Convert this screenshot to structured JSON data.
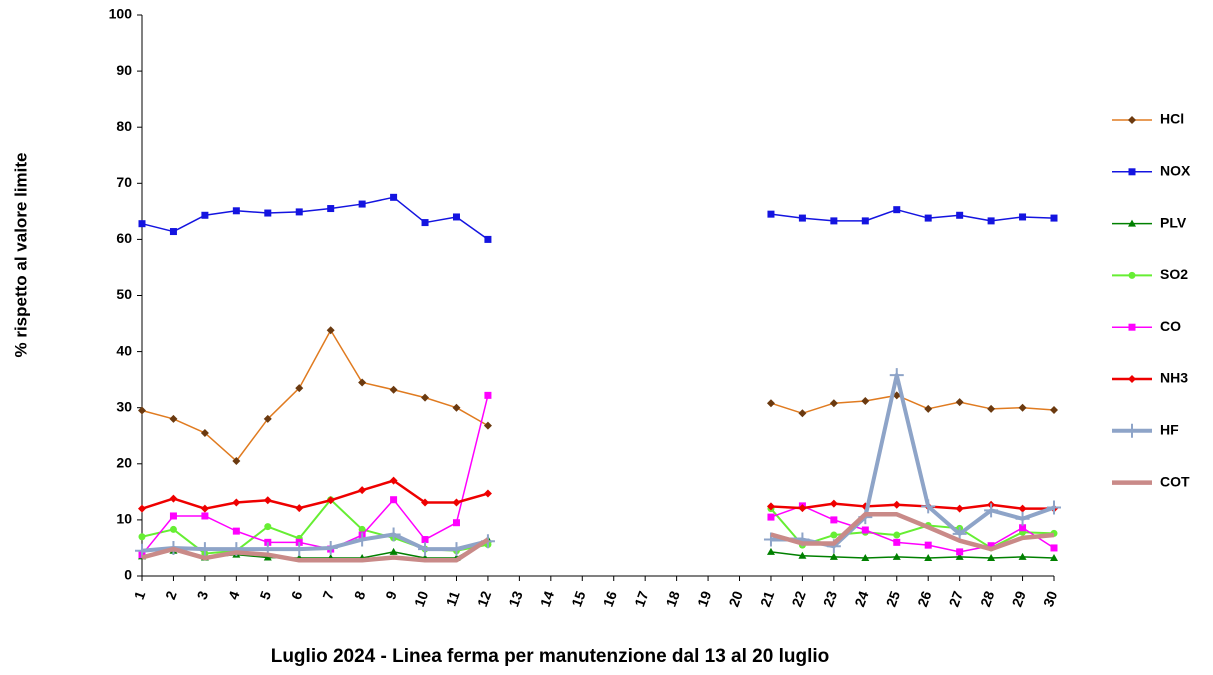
{
  "chart_data": {
    "type": "line",
    "y_label": "% rispetto al valore limite",
    "x_label": "Luglio 2024 - Linea ferma per manutenzione dal 13 al 20 luglio",
    "categories": [
      "1",
      "2",
      "3",
      "4",
      "5",
      "6",
      "7",
      "8",
      "9",
      "10",
      "11",
      "12",
      "13",
      "14",
      "15",
      "16",
      "17",
      "18",
      "19",
      "20",
      "21",
      "22",
      "23",
      "24",
      "25",
      "26",
      "27",
      "28",
      "29",
      "30"
    ],
    "ylim": [
      0,
      100
    ],
    "yticks": [
      0,
      10,
      20,
      30,
      40,
      50,
      60,
      70,
      80,
      90,
      100
    ],
    "legend": "right",
    "series": [
      {
        "name": "HCl",
        "color": "#e07b20",
        "marker": "diamond",
        "marker_color": "#6b3a10",
        "width": 1.5,
        "values": [
          29.5,
          28,
          25.5,
          20.5,
          28,
          33.5,
          43.8,
          34.5,
          33.2,
          31.8,
          30,
          26.8,
          null,
          null,
          null,
          null,
          null,
          null,
          null,
          null,
          30.8,
          29,
          30.8,
          31.2,
          32.2,
          29.8,
          31,
          29.8,
          30,
          29.6
        ]
      },
      {
        "name": "NOX",
        "color": "#1414e0",
        "marker": "square",
        "marker_color": "#1414e0",
        "width": 1.5,
        "values": [
          62.8,
          61.4,
          64.3,
          65.1,
          64.7,
          64.9,
          65.5,
          66.3,
          67.5,
          63,
          64,
          60,
          null,
          null,
          null,
          null,
          null,
          null,
          null,
          null,
          64.5,
          63.8,
          63.3,
          63.3,
          65.3,
          63.8,
          64.3,
          63.3,
          64,
          63.8
        ]
      },
      {
        "name": "PLV",
        "color": "#008000",
        "marker": "triangle",
        "marker_color": "#008000",
        "width": 1.5,
        "values": [
          3.5,
          4.5,
          3.3,
          3.8,
          3.3,
          3.2,
          3.2,
          3.2,
          4.3,
          3.2,
          3.2,
          6.5,
          null,
          null,
          null,
          null,
          null,
          null,
          null,
          null,
          4.3,
          3.6,
          3.4,
          3.2,
          3.4,
          3.2,
          3.4,
          3.2,
          3.4,
          3.2
        ]
      },
      {
        "name": "SO2",
        "color": "#66ee33",
        "marker": "circle",
        "marker_color": "#66ee33",
        "width": 2,
        "values": [
          7,
          8.3,
          4,
          4.5,
          8.8,
          6.7,
          13.6,
          8.3,
          6.8,
          4.8,
          4.5,
          5.6,
          null,
          null,
          null,
          null,
          null,
          null,
          null,
          null,
          12,
          5.5,
          7.3,
          7.8,
          7.3,
          9,
          8.5,
          5,
          7.8,
          7.6
        ]
      },
      {
        "name": "CO",
        "color": "#ff00ff",
        "marker": "square",
        "marker_color": "#ff00ff",
        "width": 1.5,
        "values": [
          3.8,
          10.7,
          10.7,
          8,
          6,
          6,
          4.8,
          7.3,
          13.6,
          6.5,
          9.5,
          32.2,
          null,
          null,
          null,
          null,
          null,
          null,
          null,
          null,
          10.5,
          12.5,
          10,
          8.2,
          6,
          5.5,
          4.3,
          5.4,
          8.6,
          5
        ]
      },
      {
        "name": "NH3",
        "color": "#ee0000",
        "marker": "diamond",
        "marker_color": "#ee0000",
        "width": 2.5,
        "values": [
          12,
          13.8,
          12,
          13.1,
          13.5,
          12.1,
          13.5,
          15.3,
          17,
          13.1,
          13.1,
          14.7,
          null,
          null,
          null,
          null,
          null,
          null,
          null,
          null,
          12.4,
          12.1,
          12.9,
          12.4,
          12.7,
          12.4,
          12,
          12.7,
          12,
          12
        ]
      },
      {
        "name": "HF",
        "color": "#8ea4c8",
        "marker": "plus",
        "marker_color": "#8ea4c8",
        "width": 4,
        "values": [
          4.5,
          5,
          4.8,
          4.8,
          4.8,
          4.8,
          5,
          6.5,
          7.4,
          4.8,
          4.8,
          6.2,
          null,
          null,
          null,
          null,
          null,
          null,
          null,
          null,
          6.5,
          6.5,
          5.3,
          10.5,
          35.8,
          12.4,
          7.5,
          11.7,
          10.2,
          12.2
        ]
      },
      {
        "name": "COT",
        "color": "#c98a88",
        "marker": "none",
        "marker_color": "#c98a88",
        "width": 4.5,
        "values": [
          3.3,
          4.8,
          3.2,
          4.2,
          3.8,
          2.8,
          2.8,
          2.8,
          3.3,
          2.8,
          2.8,
          6.5,
          null,
          null,
          null,
          null,
          null,
          null,
          null,
          null,
          7.4,
          5.8,
          5.8,
          11,
          11,
          8.7,
          6.3,
          4.8,
          6.8,
          7.3
        ]
      }
    ]
  }
}
